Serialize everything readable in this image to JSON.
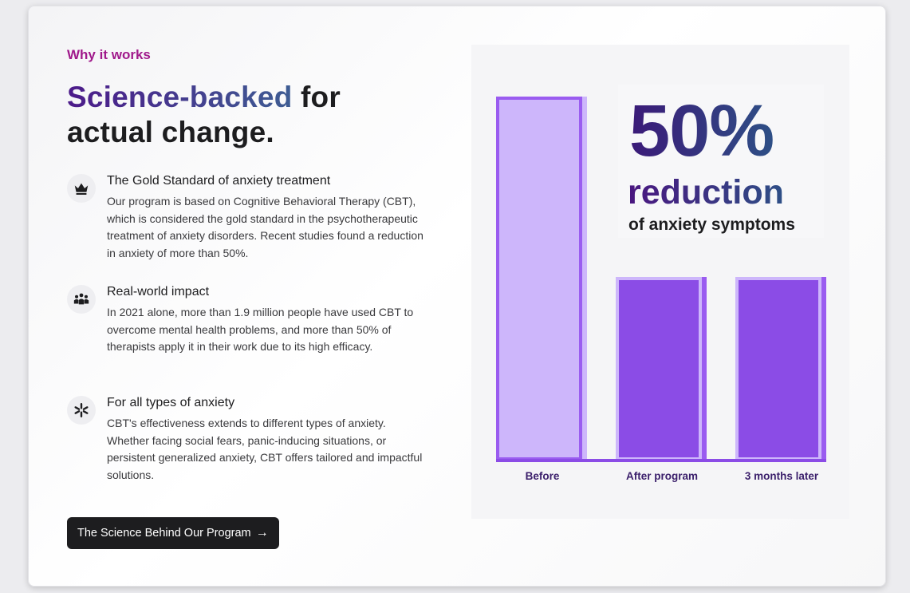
{
  "section": {
    "eyebrow": "Why it works",
    "headline_highlight": "Science-backed",
    "headline_rest_1": " for",
    "headline_rest_2": "actual change."
  },
  "features": [
    {
      "icon": "crown-icon",
      "title": "The Gold Standard of anxiety treatment",
      "text": "Our program is based on Cognitive Behavioral Therapy (CBT), which is considered the gold standard in the psychotherapeutic treatment of anxiety disorders. Recent studies found a reduction in anxiety of more than 50%."
    },
    {
      "icon": "people-group-icon",
      "title": "Real-world impact",
      "text": "In 2021 alone, more than 1.9 million people have used CBT to overcome mental health problems, and more than 50% of therapists apply it in their work due to its high efficacy."
    },
    {
      "icon": "asterisk-icon",
      "title": "For all types of anxiety",
      "text": "CBT's effectiveness extends to different types of anxiety. Whether facing social fears, panic-inducing situations, or persistent generalized anxiety, CBT offers tailored and impactful solutions."
    }
  ],
  "cta": {
    "label": "The Science Behind Our Program",
    "arrow": "→"
  },
  "stat": {
    "value": "50%",
    "word": "reduction",
    "subtitle": "of anxiety symptoms"
  },
  "colors": {
    "eyebrow": "#a0198b",
    "bar_light": "#cdb6fb",
    "bar_dark": "#8b4ce6",
    "bar_outline": "#9a5cf0",
    "axis": "#8b4ce6",
    "label": "#3b1f6b"
  },
  "chart_data": {
    "type": "bar",
    "categories": [
      "Before",
      "After program",
      "3 months later"
    ],
    "values": [
      100,
      50,
      50
    ],
    "ylim": [
      0,
      100
    ],
    "grid": false,
    "legend": "none",
    "title": "",
    "xlabel": "",
    "ylabel": ""
  }
}
